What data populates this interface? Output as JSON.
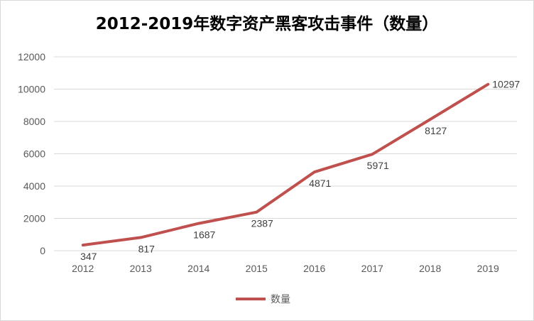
{
  "chart_data": {
    "type": "line",
    "title": "2012-2019年数字资产黑客攻击事件（数量）",
    "categories": [
      "2012",
      "2013",
      "2014",
      "2015",
      "2016",
      "2017",
      "2018",
      "2019"
    ],
    "series": [
      {
        "name": "数量",
        "values": [
          347,
          817,
          1687,
          2387,
          4871,
          5971,
          8127,
          10297
        ]
      }
    ],
    "ylim": [
      0,
      12000
    ],
    "yticks": [
      "0",
      "2000",
      "4000",
      "6000",
      "8000",
      "10000",
      "12000"
    ],
    "grid": true,
    "legend": "bottom",
    "line_color": "#c0504d",
    "grid_color": "#d9d9d9"
  }
}
